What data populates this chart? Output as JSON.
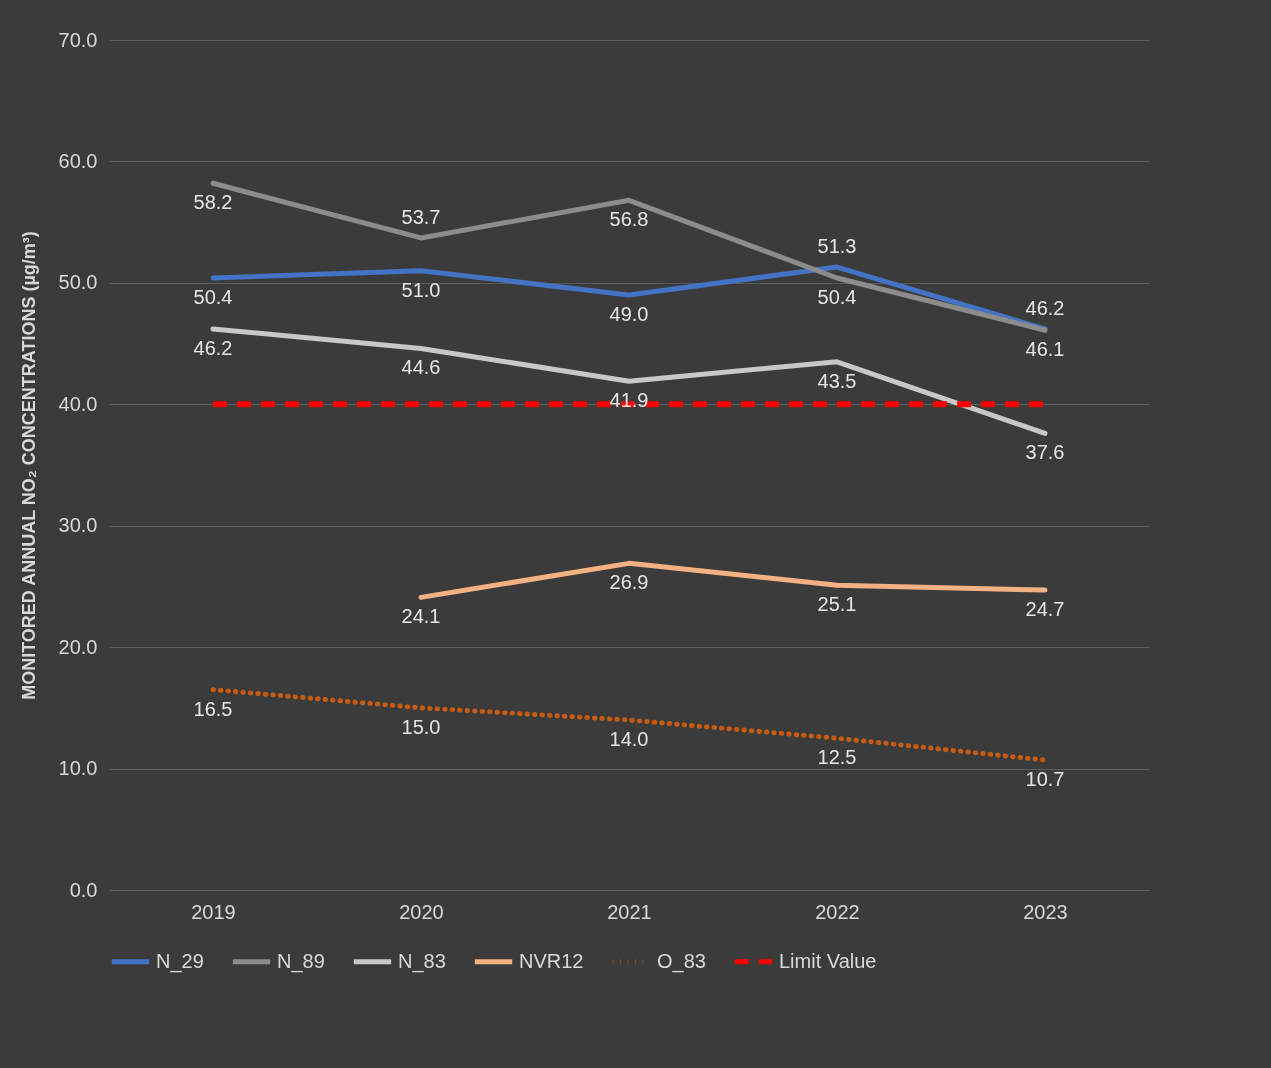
{
  "chart_data": {
    "type": "line",
    "ylabel": "MONITORED ANNUAL NO₂ CONCENTRATIONS (µg/m³)",
    "categories": [
      "2019",
      "2020",
      "2021",
      "2022",
      "2023"
    ],
    "series": [
      {
        "name": "N_29",
        "color": "#4472c4",
        "values": [
          50.4,
          51.0,
          49.0,
          51.3,
          46.2
        ],
        "value_labels": [
          "50.4",
          "51.0",
          "49.0",
          "51.3",
          "46.2"
        ],
        "line_style": "solid"
      },
      {
        "name": "N_89",
        "color": "#8c8c8c",
        "values": [
          58.2,
          53.7,
          56.8,
          50.4,
          46.1
        ],
        "value_labels": [
          "58.2",
          "53.7",
          "56.8",
          "50.4",
          "46.1"
        ],
        "line_style": "solid"
      },
      {
        "name": "N_83",
        "color": "#c8c8c8",
        "values": [
          46.2,
          44.6,
          41.9,
          43.5,
          37.6
        ],
        "value_labels": [
          "46.2",
          "44.6",
          "41.9",
          "43.5",
          "37.6"
        ],
        "line_style": "solid"
      },
      {
        "name": "NVR12",
        "color": "#f4b183",
        "values": [
          null,
          24.1,
          26.9,
          25.1,
          24.7
        ],
        "value_labels": [
          null,
          "24.1",
          "26.9",
          "25.1",
          "24.7"
        ],
        "line_style": "solid"
      },
      {
        "name": "O_83",
        "color": "#c55a11",
        "values": [
          16.5,
          15.0,
          14.0,
          12.5,
          10.7
        ],
        "value_labels": [
          "16.5",
          "15.0",
          "14.0",
          "12.5",
          "10.7"
        ],
        "line_style": "dotted"
      }
    ],
    "ref_lines": [
      {
        "axis": "y",
        "value": 40,
        "label": "Limit Value",
        "color": "#ff0000",
        "line_style": "dashed"
      }
    ],
    "ylim": [
      0,
      70
    ],
    "yticks": [
      {
        "value": 0,
        "label": "0.0"
      },
      {
        "value": 10,
        "label": "10.0"
      },
      {
        "value": 20,
        "label": "20.0"
      },
      {
        "value": 30,
        "label": "30.0"
      },
      {
        "value": 40,
        "label": "40.0"
      },
      {
        "value": 50,
        "label": "50.0"
      },
      {
        "value": 60,
        "label": "60.0"
      },
      {
        "value": 70,
        "label": "70.0"
      }
    ],
    "grid": "y",
    "legend": "bottom",
    "marker": "none",
    "data_labels": true
  }
}
